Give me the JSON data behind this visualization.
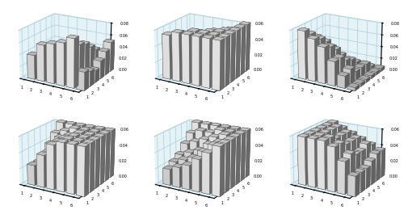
{
  "nrows": 2,
  "ncols": 3,
  "n": 6,
  "background_color": "#cce8f0",
  "subplot_datasets": [
    {
      "zlim": [
        0,
        0.08
      ],
      "zticks": [
        0.0,
        0.02,
        0.04,
        0.06,
        0.08
      ],
      "data": [
        [
          0.04,
          0.06,
          0.065,
          0.07,
          0.08,
          0.03
        ],
        [
          0.03,
          0.04,
          0.05,
          0.06,
          0.065,
          0.025
        ],
        [
          0.025,
          0.03,
          0.04,
          0.055,
          0.06,
          0.02
        ],
        [
          0.015,
          0.02,
          0.03,
          0.04,
          0.05,
          0.03
        ],
        [
          0.01,
          0.015,
          0.02,
          0.03,
          0.04,
          0.04
        ],
        [
          0.005,
          0.01,
          0.01,
          0.015,
          0.02,
          0.05
        ]
      ]
    },
    {
      "zlim": [
        0,
        0.06
      ],
      "zticks": [
        0.0,
        0.02,
        0.04,
        0.06
      ],
      "data": [
        [
          0.055,
          0.06,
          0.06,
          0.06,
          0.06,
          0.06
        ],
        [
          0.045,
          0.055,
          0.06,
          0.06,
          0.06,
          0.06
        ],
        [
          0.04,
          0.045,
          0.055,
          0.058,
          0.06,
          0.06
        ],
        [
          0.04,
          0.04,
          0.045,
          0.055,
          0.058,
          0.06
        ],
        [
          0.04,
          0.04,
          0.04,
          0.045,
          0.055,
          0.06
        ],
        [
          0.04,
          0.04,
          0.04,
          0.04,
          0.045,
          0.06
        ]
      ]
    },
    {
      "zlim": [
        0,
        0.08
      ],
      "zticks": [
        0.0,
        0.02,
        0.04,
        0.06,
        0.08
      ],
      "data": [
        [
          0.08,
          0.07,
          0.06,
          0.04,
          0.02,
          0.005
        ],
        [
          0.07,
          0.065,
          0.055,
          0.04,
          0.025,
          0.005
        ],
        [
          0.06,
          0.055,
          0.045,
          0.03,
          0.015,
          0.005
        ],
        [
          0.04,
          0.04,
          0.03,
          0.025,
          0.015,
          0.005
        ],
        [
          0.02,
          0.02,
          0.015,
          0.015,
          0.015,
          0.005
        ],
        [
          0.005,
          0.005,
          0.005,
          0.005,
          0.005,
          0.005
        ]
      ]
    },
    {
      "zlim": [
        0,
        0.06
      ],
      "zticks": [
        0.0,
        0.02,
        0.04,
        0.06
      ],
      "data": [
        [
          0.025,
          0.04,
          0.055,
          0.06,
          0.06,
          0.06
        ],
        [
          0.025,
          0.04,
          0.055,
          0.06,
          0.06,
          0.06
        ],
        [
          0.03,
          0.045,
          0.055,
          0.06,
          0.06,
          0.06
        ],
        [
          0.04,
          0.05,
          0.055,
          0.06,
          0.06,
          0.06
        ],
        [
          0.05,
          0.055,
          0.06,
          0.06,
          0.06,
          0.06
        ],
        [
          0.06,
          0.06,
          0.06,
          0.06,
          0.06,
          0.06
        ]
      ]
    },
    {
      "zlim": [
        0,
        0.06
      ],
      "zticks": [
        0.0,
        0.02,
        0.04,
        0.06
      ],
      "data": [
        [
          0.02,
          0.025,
          0.03,
          0.04,
          0.05,
          0.06
        ],
        [
          0.025,
          0.03,
          0.035,
          0.045,
          0.055,
          0.06
        ],
        [
          0.03,
          0.035,
          0.04,
          0.05,
          0.055,
          0.06
        ],
        [
          0.04,
          0.045,
          0.05,
          0.055,
          0.06,
          0.06
        ],
        [
          0.05,
          0.055,
          0.055,
          0.06,
          0.06,
          0.06
        ],
        [
          0.06,
          0.06,
          0.06,
          0.06,
          0.06,
          0.06
        ]
      ]
    },
    {
      "zlim": [
        0,
        0.06
      ],
      "zticks": [
        0.0,
        0.02,
        0.04,
        0.06
      ],
      "data": [
        [
          0.06,
          0.06,
          0.06,
          0.055,
          0.04,
          0.025
        ],
        [
          0.06,
          0.06,
          0.06,
          0.055,
          0.045,
          0.025
        ],
        [
          0.06,
          0.06,
          0.055,
          0.05,
          0.04,
          0.025
        ],
        [
          0.06,
          0.06,
          0.055,
          0.05,
          0.04,
          0.03
        ],
        [
          0.06,
          0.06,
          0.055,
          0.05,
          0.045,
          0.035
        ],
        [
          0.06,
          0.055,
          0.05,
          0.045,
          0.04,
          0.035
        ]
      ]
    }
  ]
}
